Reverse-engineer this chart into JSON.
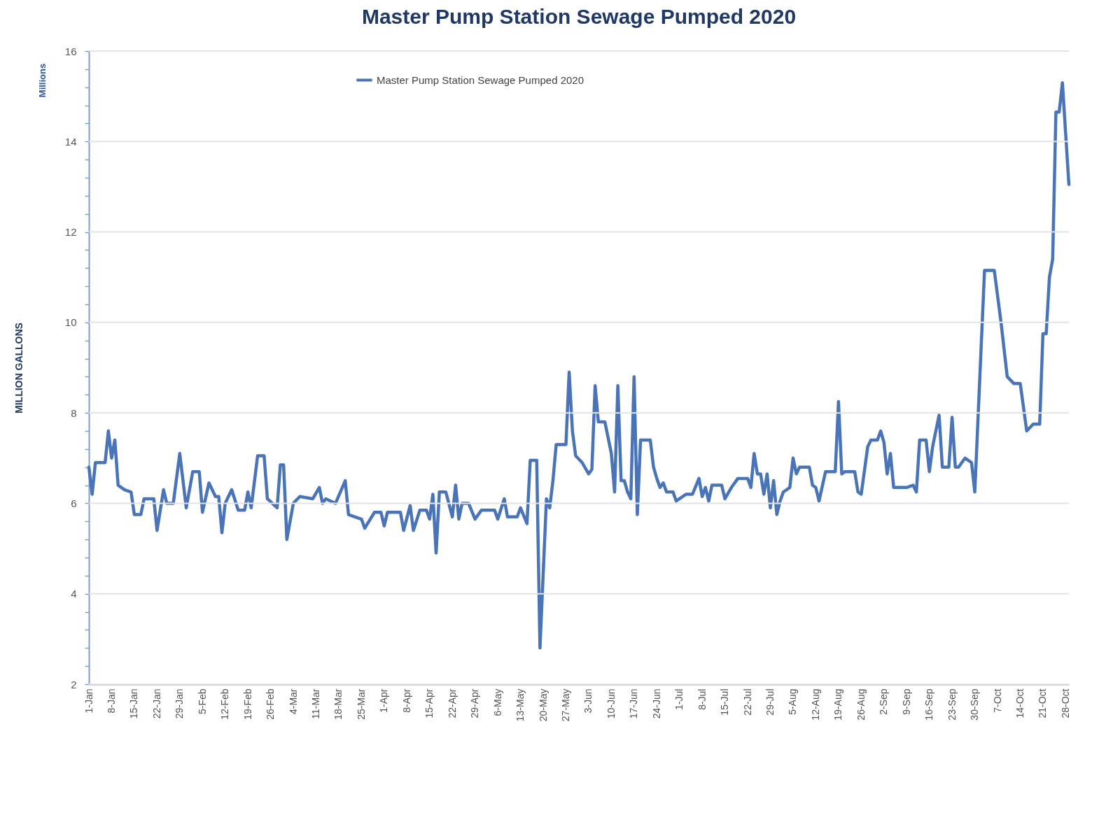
{
  "chart_data": {
    "type": "line",
    "title": "Master Pump Station Sewage Pumped 2020",
    "ylabel": "MILLION GALLONS",
    "annotations": [
      "Millions"
    ],
    "x": [
      "2020-01-01",
      "2020-01-02",
      "2020-01-03",
      "2020-01-06",
      "2020-01-07",
      "2020-01-08",
      "2020-01-09",
      "2020-01-10",
      "2020-01-12",
      "2020-01-14",
      "2020-01-15",
      "2020-01-17",
      "2020-01-18",
      "2020-01-21",
      "2020-01-22",
      "2020-01-24",
      "2020-01-25",
      "2020-01-27",
      "2020-01-29",
      "2020-01-31",
      "2020-02-02",
      "2020-02-04",
      "2020-02-05",
      "2020-02-07",
      "2020-02-09",
      "2020-02-10",
      "2020-02-11",
      "2020-02-12",
      "2020-02-14",
      "2020-02-16",
      "2020-02-18",
      "2020-02-19",
      "2020-02-20",
      "2020-02-22",
      "2020-02-24",
      "2020-02-25",
      "2020-02-28",
      "2020-02-29",
      "2020-03-01",
      "2020-03-02",
      "2020-03-04",
      "2020-03-06",
      "2020-03-10",
      "2020-03-12",
      "2020-03-13",
      "2020-03-14",
      "2020-03-17",
      "2020-03-20",
      "2020-03-21",
      "2020-03-25",
      "2020-03-26",
      "2020-03-29",
      "2020-03-31",
      "2020-04-01",
      "2020-04-02",
      "2020-04-06",
      "2020-04-07",
      "2020-04-09",
      "2020-04-10",
      "2020-04-12",
      "2020-04-14",
      "2020-04-15",
      "2020-04-16",
      "2020-04-17",
      "2020-04-18",
      "2020-04-20",
      "2020-04-22",
      "2020-04-23",
      "2020-04-24",
      "2020-04-25",
      "2020-04-27",
      "2020-04-29",
      "2020-05-01",
      "2020-05-05",
      "2020-05-06",
      "2020-05-08",
      "2020-05-09",
      "2020-05-12",
      "2020-05-13",
      "2020-05-15",
      "2020-05-16",
      "2020-05-18",
      "2020-05-19",
      "2020-05-21",
      "2020-05-22",
      "2020-05-23",
      "2020-05-24",
      "2020-05-27",
      "2020-05-28",
      "2020-05-29",
      "2020-05-30",
      "2020-06-01",
      "2020-06-03",
      "2020-06-04",
      "2020-06-05",
      "2020-06-06",
      "2020-06-08",
      "2020-06-10",
      "2020-06-11",
      "2020-06-12",
      "2020-06-13",
      "2020-06-14",
      "2020-06-15",
      "2020-06-16",
      "2020-06-17",
      "2020-06-18",
      "2020-06-19",
      "2020-06-22",
      "2020-06-23",
      "2020-06-24",
      "2020-06-25",
      "2020-06-26",
      "2020-06-27",
      "2020-06-29",
      "2020-06-30",
      "2020-07-01",
      "2020-07-03",
      "2020-07-05",
      "2020-07-07",
      "2020-07-08",
      "2020-07-09",
      "2020-07-10",
      "2020-07-11",
      "2020-07-14",
      "2020-07-15",
      "2020-07-17",
      "2020-07-19",
      "2020-07-22",
      "2020-07-23",
      "2020-07-24",
      "2020-07-25",
      "2020-07-26",
      "2020-07-27",
      "2020-07-28",
      "2020-07-29",
      "2020-07-30",
      "2020-07-31",
      "2020-08-01",
      "2020-08-02",
      "2020-08-04",
      "2020-08-05",
      "2020-08-06",
      "2020-08-07",
      "2020-08-10",
      "2020-08-11",
      "2020-08-12",
      "2020-08-13",
      "2020-08-15",
      "2020-08-18",
      "2020-08-19",
      "2020-08-20",
      "2020-08-21",
      "2020-08-24",
      "2020-08-25",
      "2020-08-26",
      "2020-08-28",
      "2020-08-29",
      "2020-08-31",
      "2020-09-01",
      "2020-09-02",
      "2020-09-03",
      "2020-09-04",
      "2020-09-05",
      "2020-09-09",
      "2020-09-11",
      "2020-09-12",
      "2020-09-13",
      "2020-09-15",
      "2020-09-16",
      "2020-09-17",
      "2020-09-19",
      "2020-09-20",
      "2020-09-22",
      "2020-09-23",
      "2020-09-24",
      "2020-09-25",
      "2020-09-27",
      "2020-09-29",
      "2020-09-30",
      "2020-10-03",
      "2020-10-06",
      "2020-10-08",
      "2020-10-10",
      "2020-10-12",
      "2020-10-14",
      "2020-10-16",
      "2020-10-18",
      "2020-10-20",
      "2020-10-21",
      "2020-10-22",
      "2020-10-23",
      "2020-10-24",
      "2020-10-25",
      "2020-10-26",
      "2020-10-27",
      "2020-10-29"
    ],
    "series": [
      {
        "name": "Master Pump Station Sewage Pumped 2020",
        "color": "#4a74b8",
        "values": [
          6.8,
          6.2,
          6.9,
          6.9,
          7.6,
          7.0,
          7.4,
          6.4,
          6.3,
          6.25,
          5.75,
          5.75,
          6.1,
          6.1,
          5.4,
          6.3,
          6.0,
          6.0,
          7.1,
          5.9,
          6.7,
          6.7,
          5.8,
          6.45,
          6.15,
          6.15,
          5.35,
          6.0,
          6.3,
          5.85,
          5.85,
          6.25,
          5.9,
          7.05,
          7.05,
          6.1,
          5.9,
          6.85,
          6.85,
          5.2,
          6.0,
          6.15,
          6.1,
          6.35,
          6.0,
          6.1,
          6.0,
          6.5,
          5.75,
          5.65,
          5.45,
          5.8,
          5.8,
          5.5,
          5.8,
          5.8,
          5.4,
          5.95,
          5.4,
          5.85,
          5.85,
          5.65,
          6.2,
          4.9,
          6.25,
          6.25,
          5.7,
          6.4,
          5.65,
          6.0,
          6.0,
          5.65,
          5.85,
          5.85,
          5.65,
          6.1,
          5.7,
          5.7,
          5.9,
          5.55,
          6.95,
          6.95,
          2.8,
          6.1,
          5.9,
          6.5,
          7.3,
          7.3,
          8.9,
          7.6,
          7.05,
          6.9,
          6.65,
          6.75,
          8.6,
          7.8,
          7.8,
          7.1,
          6.25,
          8.6,
          6.5,
          6.5,
          6.25,
          6.1,
          8.8,
          5.75,
          7.4,
          7.4,
          6.8,
          6.55,
          6.35,
          6.45,
          6.25,
          6.25,
          6.05,
          6.1,
          6.2,
          6.2,
          6.55,
          6.15,
          6.35,
          6.05,
          6.4,
          6.4,
          6.1,
          6.35,
          6.55,
          6.55,
          6.35,
          7.1,
          6.65,
          6.65,
          6.2,
          6.65,
          5.9,
          6.5,
          5.75,
          6.05,
          6.25,
          6.35,
          7.0,
          6.65,
          6.8,
          6.8,
          6.4,
          6.35,
          6.05,
          6.7,
          6.7,
          8.25,
          6.65,
          6.7,
          6.7,
          6.25,
          6.2,
          7.25,
          7.4,
          7.4,
          7.6,
          7.35,
          6.65,
          7.1,
          6.35,
          6.35,
          6.4,
          6.25,
          7.4,
          7.4,
          6.7,
          7.25,
          7.95,
          6.8,
          6.8,
          7.9,
          6.8,
          6.8,
          7.0,
          6.9,
          6.25,
          11.15,
          11.15,
          10.05,
          8.8,
          8.65,
          8.65,
          7.6,
          7.75,
          7.75,
          9.75,
          9.75,
          11.0,
          11.4,
          14.65,
          14.65,
          15.3,
          13.05
        ]
      }
    ],
    "xlim": [
      "2020-01-01",
      "2020-10-29"
    ],
    "xticks": [
      {
        "value": "2020-01-01",
        "label": "1-Jan"
      },
      {
        "value": "2020-01-08",
        "label": "8-Jan"
      },
      {
        "value": "2020-01-15",
        "label": "15-Jan"
      },
      {
        "value": "2020-01-22",
        "label": "22-Jan"
      },
      {
        "value": "2020-01-29",
        "label": "29-Jan"
      },
      {
        "value": "2020-02-05",
        "label": "5-Feb"
      },
      {
        "value": "2020-02-12",
        "label": "12-Feb"
      },
      {
        "value": "2020-02-19",
        "label": "19-Feb"
      },
      {
        "value": "2020-02-26",
        "label": "26-Feb"
      },
      {
        "value": "2020-03-04",
        "label": "4-Mar"
      },
      {
        "value": "2020-03-11",
        "label": "11-Mar"
      },
      {
        "value": "2020-03-18",
        "label": "18-Mar"
      },
      {
        "value": "2020-03-25",
        "label": "25-Mar"
      },
      {
        "value": "2020-04-01",
        "label": "1-Apr"
      },
      {
        "value": "2020-04-08",
        "label": "8-Apr"
      },
      {
        "value": "2020-04-15",
        "label": "15-Apr"
      },
      {
        "value": "2020-04-22",
        "label": "22-Apr"
      },
      {
        "value": "2020-04-29",
        "label": "29-Apr"
      },
      {
        "value": "2020-05-06",
        "label": "6-May"
      },
      {
        "value": "2020-05-13",
        "label": "13-May"
      },
      {
        "value": "2020-05-20",
        "label": "20-May"
      },
      {
        "value": "2020-05-27",
        "label": "27-May"
      },
      {
        "value": "2020-06-03",
        "label": "3-Jun"
      },
      {
        "value": "2020-06-10",
        "label": "10-Jun"
      },
      {
        "value": "2020-06-17",
        "label": "17-Jun"
      },
      {
        "value": "2020-06-24",
        "label": "24-Jun"
      },
      {
        "value": "2020-07-01",
        "label": "1-Jul"
      },
      {
        "value": "2020-07-08",
        "label": "8-Jul"
      },
      {
        "value": "2020-07-15",
        "label": "15-Jul"
      },
      {
        "value": "2020-07-22",
        "label": "22-Jul"
      },
      {
        "value": "2020-07-29",
        "label": "29-Jul"
      },
      {
        "value": "2020-08-05",
        "label": "5-Aug"
      },
      {
        "value": "2020-08-12",
        "label": "12-Aug"
      },
      {
        "value": "2020-08-19",
        "label": "19-Aug"
      },
      {
        "value": "2020-08-26",
        "label": "26-Aug"
      },
      {
        "value": "2020-09-02",
        "label": "2-Sep"
      },
      {
        "value": "2020-09-09",
        "label": "9-Sep"
      },
      {
        "value": "2020-09-16",
        "label": "16-Sep"
      },
      {
        "value": "2020-09-23",
        "label": "23-Sep"
      },
      {
        "value": "2020-09-30",
        "label": "30-Sep"
      },
      {
        "value": "2020-10-07",
        "label": "7-Oct"
      },
      {
        "value": "2020-10-14",
        "label": "14-Oct"
      },
      {
        "value": "2020-10-21",
        "label": "21-Oct"
      },
      {
        "value": "2020-10-28",
        "label": "28-Oct"
      }
    ],
    "ylim": [
      2,
      16
    ],
    "yticks": [
      2,
      {
        "value": 2.4,
        "label": null
      },
      {
        "value": 2.8,
        "label": null
      },
      {
        "value": 3.2,
        "label": null
      },
      {
        "value": 3.6,
        "label": null
      },
      4,
      {
        "value": 4.4,
        "label": null
      },
      {
        "value": 4.8,
        "label": null
      },
      {
        "value": 5.2,
        "label": null
      },
      {
        "value": 5.6,
        "label": null
      },
      6,
      {
        "value": 6.4,
        "label": null
      },
      {
        "value": 6.8,
        "label": null
      },
      {
        "value": 7.2,
        "label": null
      },
      {
        "value": 7.6,
        "label": null
      },
      8,
      {
        "value": 8.4,
        "label": null
      },
      {
        "value": 8.8,
        "label": null
      },
      {
        "value": 9.2,
        "label": null
      },
      {
        "value": 9.6,
        "label": null
      },
      10,
      {
        "value": 10.4,
        "label": null
      },
      {
        "value": 10.8,
        "label": null
      },
      {
        "value": 11.2,
        "label": null
      },
      {
        "value": 11.6,
        "label": null
      },
      12,
      {
        "value": 12.4,
        "label": null
      },
      {
        "value": 12.8,
        "label": null
      },
      {
        "value": 13.2,
        "label": null
      },
      {
        "value": 13.6,
        "label": null
      },
      14,
      {
        "value": 14.4,
        "label": null
      },
      {
        "value": 14.8,
        "label": null
      },
      {
        "value": 15.2,
        "label": null
      },
      {
        "value": 15.6,
        "label": null
      },
      16
    ],
    "grid": "y",
    "legend": "top",
    "marker": "none",
    "line_style": "solid"
  }
}
